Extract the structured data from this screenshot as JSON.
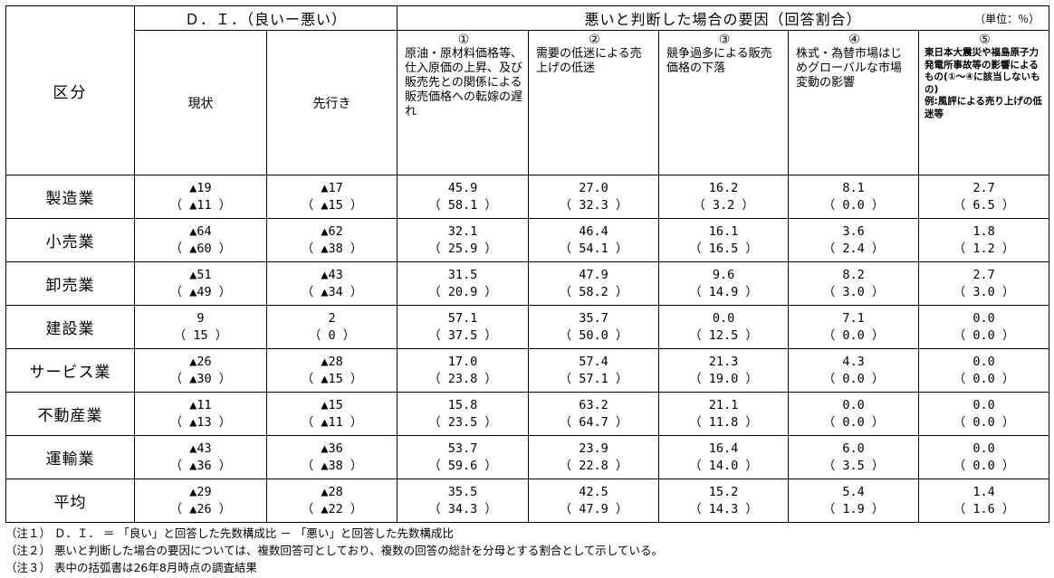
{
  "header": {
    "kubun": "区分",
    "di_title": "Ｄ．Ｉ．（良いー悪い）",
    "di_current": "現状",
    "di_future": "先行き",
    "factor_title": "悪いと判断した場合の要因（回答割合）",
    "unit": "（単位：％）",
    "factors": [
      {
        "num": "①",
        "label": "原油・原材料価格等、仕入原価の上昇、及び販売先との関係による販売価格への転嫁の遅れ"
      },
      {
        "num": "②",
        "label": "需要の低迷による売上げの低迷"
      },
      {
        "num": "③",
        "label": "競争過多による販売価格の下落"
      },
      {
        "num": "④",
        "label": "株式・為替市場はじめグローバルな市場変動の影響"
      },
      {
        "num": "⑤",
        "label": "東日本大震災や福島原子力発電所事故等の影響によるもの(①～④に該当しないもの)\n例:風評による売り上げの低迷等"
      }
    ]
  },
  "rows": [
    {
      "industry": "製造業",
      "cells": [
        {
          "v": "▲19",
          "p": "（ ▲11 ）"
        },
        {
          "v": "▲17",
          "p": "（ ▲15 ）"
        },
        {
          "v": "45.9",
          "p": "（ 58.1 ）"
        },
        {
          "v": "27.0",
          "p": "（ 32.3 ）"
        },
        {
          "v": "16.2",
          "p": "（ 3.2 ）"
        },
        {
          "v": "8.1",
          "p": "（ 0.0 ）"
        },
        {
          "v": "2.7",
          "p": "（ 6.5 ）"
        }
      ]
    },
    {
      "industry": "小売業",
      "cells": [
        {
          "v": "▲64",
          "p": "（ ▲60 ）"
        },
        {
          "v": "▲62",
          "p": "（ ▲38 ）"
        },
        {
          "v": "32.1",
          "p": "（ 25.9 ）"
        },
        {
          "v": "46.4",
          "p": "（ 54.1 ）"
        },
        {
          "v": "16.1",
          "p": "（ 16.5 ）"
        },
        {
          "v": "3.6",
          "p": "（ 2.4 ）"
        },
        {
          "v": "1.8",
          "p": "（ 1.2 ）"
        }
      ]
    },
    {
      "industry": "卸売業",
      "cells": [
        {
          "v": "▲51",
          "p": "（ ▲49 ）"
        },
        {
          "v": "▲43",
          "p": "（ ▲34 ）"
        },
        {
          "v": "31.5",
          "p": "（ 20.9 ）"
        },
        {
          "v": "47.9",
          "p": "（ 58.2 ）"
        },
        {
          "v": "9.6",
          "p": "（ 14.9 ）"
        },
        {
          "v": "8.2",
          "p": "（ 3.0 ）"
        },
        {
          "v": "2.7",
          "p": "（ 3.0 ）"
        }
      ]
    },
    {
      "industry": "建設業",
      "cells": [
        {
          "v": "9",
          "p": "（ 15 ）"
        },
        {
          "v": "2",
          "p": "（ 0 ）"
        },
        {
          "v": "57.1",
          "p": "（ 37.5 ）"
        },
        {
          "v": "35.7",
          "p": "（ 50.0 ）"
        },
        {
          "v": "0.0",
          "p": "（ 12.5 ）"
        },
        {
          "v": "7.1",
          "p": "（ 0.0 ）"
        },
        {
          "v": "0.0",
          "p": "（ 0.0 ）"
        }
      ]
    },
    {
      "industry": "サービス業",
      "cells": [
        {
          "v": "▲26",
          "p": "（ ▲30 ）"
        },
        {
          "v": "▲28",
          "p": "（ ▲15 ）"
        },
        {
          "v": "17.0",
          "p": "（ 23.8 ）"
        },
        {
          "v": "57.4",
          "p": "（ 57.1 ）"
        },
        {
          "v": "21.3",
          "p": "（ 19.0 ）"
        },
        {
          "v": "4.3",
          "p": "（ 0.0 ）"
        },
        {
          "v": "0.0",
          "p": "（ 0.0 ）"
        }
      ]
    },
    {
      "industry": "不動産業",
      "cells": [
        {
          "v": "▲11",
          "p": "（ ▲13 ）"
        },
        {
          "v": "▲15",
          "p": "（ ▲11 ）"
        },
        {
          "v": "15.8",
          "p": "（ 23.5 ）"
        },
        {
          "v": "63.2",
          "p": "（ 64.7 ）"
        },
        {
          "v": "21.1",
          "p": "（ 11.8 ）"
        },
        {
          "v": "0.0",
          "p": "（ 0.0 ）"
        },
        {
          "v": "0.0",
          "p": "（ 0.0 ）"
        }
      ]
    },
    {
      "industry": "運輸業",
      "cells": [
        {
          "v": "▲43",
          "p": "（ ▲36 ）"
        },
        {
          "v": "▲36",
          "p": "（ ▲38 ）"
        },
        {
          "v": "53.7",
          "p": "（ 59.6 ）"
        },
        {
          "v": "23.9",
          "p": "（ 22.8 ）"
        },
        {
          "v": "16.4",
          "p": "（ 14.0 ）"
        },
        {
          "v": "6.0",
          "p": "（ 3.5 ）"
        },
        {
          "v": "0.0",
          "p": "（ 0.0 ）"
        }
      ]
    }
  ],
  "average": {
    "industry": "平均",
    "cells": [
      {
        "v": "▲29",
        "p": "（ ▲26 ）"
      },
      {
        "v": "▲28",
        "p": "（ ▲22 ）"
      },
      {
        "v": "35.5",
        "p": "（ 34.3 ）"
      },
      {
        "v": "42.5",
        "p": "（ 47.9 ）"
      },
      {
        "v": "15.2",
        "p": "（ 14.3 ）"
      },
      {
        "v": "5.4",
        "p": "（ 1.9 ）"
      },
      {
        "v": "1.4",
        "p": "（ 1.6 ）"
      }
    ]
  },
  "notes": [
    "（注１） Ｄ．Ｉ． ＝ 「良い」と回答した先数構成比 － 「悪い」と回答した先数構成比",
    "（注２） 悪いと判断した場合の要因については、複数回答可としており、複数の回答の総計を分母とする割合として示している。",
    "（注３） 表中の括弧書は26年8月時点の調査結果"
  ]
}
